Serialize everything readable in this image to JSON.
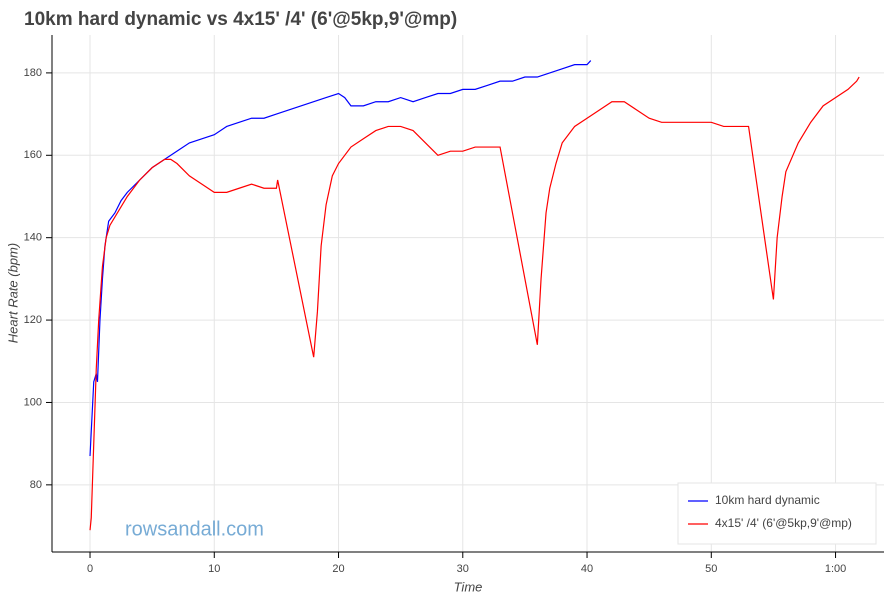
{
  "chart_data": {
    "type": "line",
    "title": "10km hard dynamic vs 4x15' /4' (6'@5kp,9'@mp)",
    "xlabel": "Time",
    "ylabel": "Heart Rate (bpm)",
    "watermark": "rowsandall.com",
    "xlim": [
      -3.06,
      63.9
    ],
    "ylim": [
      63.7,
      189.2
    ],
    "xticks": [
      0,
      10,
      20,
      30,
      40,
      50,
      {
        "value": 60,
        "label": "1:00"
      }
    ],
    "yticks": [
      80,
      100,
      120,
      140,
      160,
      180
    ],
    "grid": true,
    "legend": "bottom-right",
    "series": [
      {
        "name": "10km hard dynamic",
        "color": "#0000ff",
        "x": [
          0,
          0.3,
          0.5,
          0.6,
          0.8,
          1,
          1.2,
          1.5,
          2,
          2.5,
          3,
          4,
          5,
          6,
          7,
          8,
          9,
          10,
          11,
          12,
          13,
          14,
          15,
          16,
          17,
          18,
          19,
          20,
          20.5,
          21,
          22,
          23,
          24,
          25,
          26,
          27,
          28,
          29,
          30,
          31,
          32,
          33,
          34,
          35,
          36,
          37,
          38,
          39,
          40,
          40.3
        ],
        "values": [
          87,
          105,
          107,
          105,
          120,
          130,
          138,
          144,
          146,
          149,
          151,
          154,
          157,
          159,
          161,
          163,
          164,
          165,
          167,
          168,
          169,
          169,
          170,
          171,
          172,
          173,
          174,
          175,
          174,
          172,
          172,
          173,
          173,
          174,
          173,
          174,
          175,
          175,
          176,
          176,
          177,
          178,
          178,
          179,
          179,
          180,
          181,
          182,
          182,
          183
        ]
      },
      {
        "name": "4x15' /4' (6'@5kp,9'@mp)",
        "color": "#ff0000",
        "x": [
          0,
          0.1,
          0.3,
          0.5,
          0.7,
          1,
          1.3,
          1.6,
          2,
          3,
          4,
          5,
          6,
          6.5,
          7,
          8,
          9,
          10,
          11,
          12,
          13,
          14,
          15,
          15.1,
          18,
          18.3,
          18.6,
          19,
          19.5,
          20,
          21,
          22,
          23,
          24,
          25,
          26,
          27,
          28,
          29,
          30,
          31,
          33,
          36,
          36.3,
          36.7,
          37,
          37.5,
          38,
          39,
          40,
          41,
          42,
          43,
          44,
          45,
          46,
          48,
          50,
          51,
          53,
          55,
          55.3,
          55.7,
          56,
          57,
          58,
          59,
          60,
          61,
          61.7,
          61.9
        ],
        "values": [
          69,
          72,
          90,
          108,
          120,
          133,
          140,
          143,
          145,
          150,
          154,
          157,
          159,
          159,
          158,
          155,
          153,
          151,
          151,
          152,
          153,
          152,
          152,
          154,
          111,
          122,
          138,
          148,
          155,
          158,
          162,
          164,
          166,
          167,
          167,
          166,
          163,
          160,
          161,
          161,
          162,
          162,
          114,
          130,
          146,
          152,
          158,
          163,
          167,
          169,
          171,
          173,
          173,
          171,
          169,
          168,
          168,
          168,
          167,
          167,
          125,
          140,
          150,
          156,
          163,
          168,
          172,
          174,
          176,
          178,
          179
        ]
      }
    ]
  }
}
